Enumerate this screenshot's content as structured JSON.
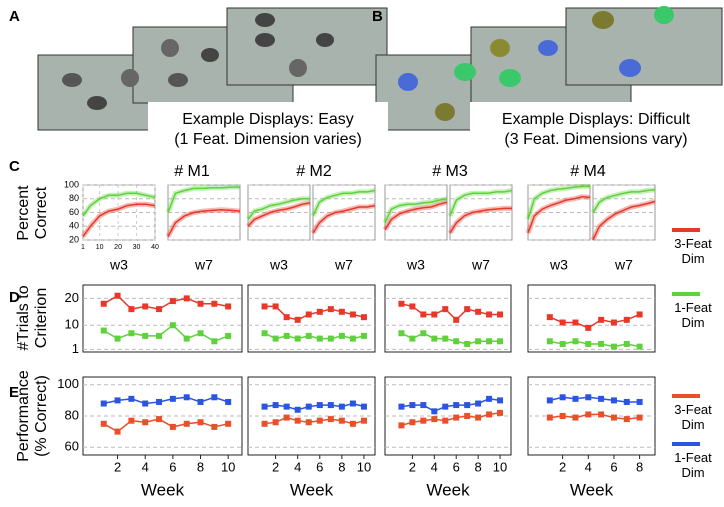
{
  "panel_labels": [
    "A",
    "B",
    "C",
    "D",
    "E"
  ],
  "displays": [
    {
      "title": "Example Displays: Easy",
      "note": "(1 Feat. Dimension varies)"
    },
    {
      "title": "Example Displays: Difficult",
      "note": "(3 Feat. Dimensions vary)"
    }
  ],
  "monkeys": [
    "# M1",
    "# M2",
    "# M3",
    "# M4"
  ],
  "chart_data": [
    {
      "type": "line",
      "label": "w3",
      "ylabel": "Percent Correct",
      "x": [
        1,
        5,
        10,
        15,
        20,
        25,
        30,
        35,
        40
      ],
      "xlim": [
        1,
        40
      ],
      "ylim": [
        20,
        100
      ],
      "xticks": [
        1,
        10,
        20,
        30,
        40
      ],
      "yticks": [
        20,
        40,
        60,
        80,
        100
      ],
      "series": [
        {
          "color": "#e8382a",
          "values": [
            25,
            40,
            55,
            62,
            65,
            70,
            72,
            72,
            70
          ]
        },
        {
          "color": "#5fd13b",
          "values": [
            55,
            70,
            80,
            85,
            85,
            88,
            88,
            85,
            82
          ]
        }
      ]
    },
    {
      "type": "line",
      "label": "w7",
      "x": [
        1,
        5,
        10,
        15,
        20,
        25,
        30,
        35,
        40
      ],
      "xlim": [
        1,
        40
      ],
      "ylim": [
        20,
        100
      ],
      "series": [
        {
          "color": "#e8382a",
          "values": [
            25,
            45,
            55,
            60,
            62,
            63,
            64,
            63,
            62
          ]
        },
        {
          "color": "#5fd13b",
          "values": [
            60,
            88,
            92,
            95,
            95,
            96,
            96,
            97,
            97
          ]
        }
      ]
    },
    {
      "type": "line",
      "label": "w3",
      "x": [
        1,
        5,
        10,
        15,
        20,
        25,
        30,
        35,
        40
      ],
      "xlim": [
        1,
        40
      ],
      "ylim": [
        20,
        100
      ],
      "series": [
        {
          "color": "#e8382a",
          "values": [
            40,
            50,
            55,
            60,
            63,
            65,
            68,
            72,
            74
          ]
        },
        {
          "color": "#5fd13b",
          "values": [
            50,
            62,
            65,
            70,
            72,
            75,
            78,
            80,
            80
          ]
        }
      ]
    },
    {
      "type": "line",
      "label": "w7",
      "x": [
        1,
        5,
        10,
        15,
        20,
        25,
        30,
        35,
        40
      ],
      "xlim": [
        1,
        40
      ],
      "ylim": [
        20,
        100
      ],
      "series": [
        {
          "color": "#e8382a",
          "values": [
            30,
            45,
            55,
            60,
            62,
            65,
            68,
            68,
            70
          ]
        },
        {
          "color": "#5fd13b",
          "values": [
            55,
            75,
            82,
            85,
            88,
            88,
            90,
            90,
            92
          ]
        }
      ]
    },
    {
      "type": "line",
      "label": "w3",
      "x": [
        1,
        5,
        10,
        15,
        20,
        25,
        30,
        35,
        40
      ],
      "xlim": [
        1,
        40
      ],
      "ylim": [
        20,
        100
      ],
      "series": [
        {
          "color": "#e8382a",
          "values": [
            35,
            50,
            58,
            62,
            65,
            67,
            68,
            72,
            75
          ]
        },
        {
          "color": "#5fd13b",
          "values": [
            45,
            65,
            70,
            72,
            72,
            74,
            75,
            78,
            80
          ]
        }
      ]
    },
    {
      "type": "line",
      "label": "w7",
      "x": [
        1,
        5,
        10,
        15,
        20,
        25,
        30,
        35,
        40
      ],
      "xlim": [
        1,
        40
      ],
      "ylim": [
        20,
        100
      ],
      "series": [
        {
          "color": "#e8382a",
          "values": [
            30,
            45,
            55,
            60,
            62,
            64,
            65,
            66,
            66
          ]
        },
        {
          "color": "#5fd13b",
          "values": [
            55,
            78,
            85,
            88,
            88,
            88,
            90,
            90,
            92
          ]
        }
      ]
    },
    {
      "type": "line",
      "label": "w3",
      "x": [
        1,
        5,
        10,
        15,
        20,
        25,
        30,
        35,
        40
      ],
      "xlim": [
        1,
        40
      ],
      "ylim": [
        20,
        100
      ],
      "series": [
        {
          "color": "#e8382a",
          "values": [
            30,
            55,
            65,
            70,
            74,
            78,
            80,
            83,
            82
          ]
        },
        {
          "color": "#5fd13b",
          "values": [
            50,
            80,
            88,
            92,
            94,
            95,
            97,
            98,
            98
          ]
        }
      ]
    },
    {
      "type": "line",
      "label": "w7",
      "x": [
        1,
        5,
        10,
        15,
        20,
        25,
        30,
        35,
        40
      ],
      "xlim": [
        1,
        40
      ],
      "ylim": [
        20,
        100
      ],
      "series": [
        {
          "color": "#e8382a",
          "values": [
            20,
            40,
            50,
            58,
            63,
            68,
            70,
            73,
            76
          ]
        },
        {
          "color": "#5fd13b",
          "values": [
            60,
            75,
            82,
            85,
            88,
            90,
            90,
            92,
            93
          ]
        }
      ]
    },
    {
      "type": "line",
      "ylabel": "#Trials to Criterion",
      "x": [
        1,
        2,
        3,
        4,
        5,
        6,
        7,
        8,
        9,
        10
      ],
      "xlim": [
        -0.5,
        11
      ],
      "ylim": [
        0,
        25
      ],
      "yticks": [
        1,
        10,
        20
      ],
      "series": [
        {
          "name": "3-Feat Dim",
          "color": "#e8382a",
          "values": [
            18,
            21,
            16,
            17,
            16,
            19,
            20,
            18,
            18,
            17
          ]
        },
        {
          "name": "1-Feat Dim",
          "color": "#5fd13b",
          "values": [
            8,
            5,
            7,
            6,
            6,
            10,
            5,
            7,
            4,
            6
          ]
        }
      ]
    },
    {
      "type": "line",
      "x": [
        1,
        2,
        3,
        4,
        5,
        6,
        7,
        8,
        9,
        10
      ],
      "xlim": [
        -0.5,
        11
      ],
      "ylim": [
        0,
        25
      ],
      "series": [
        {
          "color": "#e8382a",
          "values": [
            17,
            17,
            13,
            12,
            14,
            15,
            16,
            15,
            14,
            13
          ]
        },
        {
          "color": "#5fd13b",
          "values": [
            7,
            5,
            6,
            5,
            6,
            5,
            5,
            6,
            5,
            6
          ]
        }
      ]
    },
    {
      "type": "line",
      "x": [
        1,
        2,
        3,
        4,
        5,
        6,
        7,
        8,
        9,
        10
      ],
      "xlim": [
        -0.5,
        11
      ],
      "ylim": [
        0,
        25
      ],
      "series": [
        {
          "color": "#e8382a",
          "values": [
            18,
            17,
            14,
            14,
            16,
            12,
            16,
            15,
            14,
            14
          ]
        },
        {
          "color": "#5fd13b",
          "values": [
            7,
            5,
            7,
            5,
            5,
            4,
            3,
            4,
            4,
            4
          ]
        }
      ]
    },
    {
      "type": "line",
      "x": [
        1,
        2,
        3,
        4,
        5,
        6,
        7,
        8
      ],
      "xlim": [
        -0.7,
        9.2
      ],
      "ylim": [
        0,
        25
      ],
      "series": [
        {
          "color": "#e8382a",
          "values": [
            13,
            11,
            11,
            9,
            12,
            11,
            12,
            14
          ]
        },
        {
          "color": "#5fd13b",
          "values": [
            4,
            3,
            4,
            3,
            3,
            2,
            3,
            2
          ]
        }
      ]
    },
    {
      "type": "line",
      "ylabel": "Performance (% Correct)",
      "xlabel": "Week",
      "x": [
        1,
        2,
        3,
        4,
        5,
        6,
        7,
        8,
        9,
        10
      ],
      "xlim": [
        -0.5,
        11
      ],
      "ylim": [
        55,
        105
      ],
      "xticks": [
        2,
        4,
        6,
        8,
        10
      ],
      "yticks": [
        60,
        80,
        100
      ],
      "series": [
        {
          "name": "3-Feat Dim",
          "color": "#e8502a",
          "values": [
            75,
            70,
            77,
            76,
            78,
            73,
            75,
            76,
            73,
            75
          ]
        },
        {
          "name": "1-Feat Dim",
          "color": "#2b55e0",
          "values": [
            88,
            90,
            91,
            88,
            89,
            91,
            92,
            89,
            92,
            89
          ]
        }
      ]
    },
    {
      "type": "line",
      "xlabel": "Week",
      "x": [
        1,
        2,
        3,
        4,
        5,
        6,
        7,
        8,
        9,
        10
      ],
      "xlim": [
        -0.5,
        11
      ],
      "ylim": [
        55,
        105
      ],
      "xticks": [
        2,
        4,
        6,
        8,
        10
      ],
      "series": [
        {
          "color": "#e8502a",
          "values": [
            75,
            76,
            79,
            77,
            76,
            77,
            78,
            77,
            75,
            77
          ]
        },
        {
          "color": "#2b55e0",
          "values": [
            86,
            87,
            86,
            84,
            86,
            87,
            87,
            86,
            88,
            86
          ]
        }
      ]
    },
    {
      "type": "line",
      "xlabel": "Week",
      "x": [
        1,
        2,
        3,
        4,
        5,
        6,
        7,
        8,
        9,
        10
      ],
      "xlim": [
        -0.5,
        11
      ],
      "ylim": [
        55,
        105
      ],
      "xticks": [
        2,
        4,
        6,
        8,
        10
      ],
      "series": [
        {
          "color": "#e8502a",
          "values": [
            74,
            76,
            77,
            78,
            77,
            79,
            80,
            79,
            81,
            82
          ]
        },
        {
          "color": "#2b55e0",
          "values": [
            86,
            87,
            87,
            83,
            86,
            87,
            87,
            88,
            91,
            90
          ]
        }
      ]
    },
    {
      "type": "line",
      "xlabel": "Week",
      "x": [
        1,
        2,
        3,
        4,
        5,
        6,
        7,
        8
      ],
      "xlim": [
        -0.7,
        9.2
      ],
      "ylim": [
        55,
        105
      ],
      "xticks": [
        2,
        4,
        6,
        8
      ],
      "series": [
        {
          "color": "#e8502a",
          "values": [
            79,
            80,
            79,
            81,
            81,
            79,
            78,
            79
          ]
        },
        {
          "color": "#2b55e0",
          "values": [
            90,
            92,
            91,
            92,
            91,
            90,
            89,
            89
          ]
        }
      ]
    }
  ]
}
